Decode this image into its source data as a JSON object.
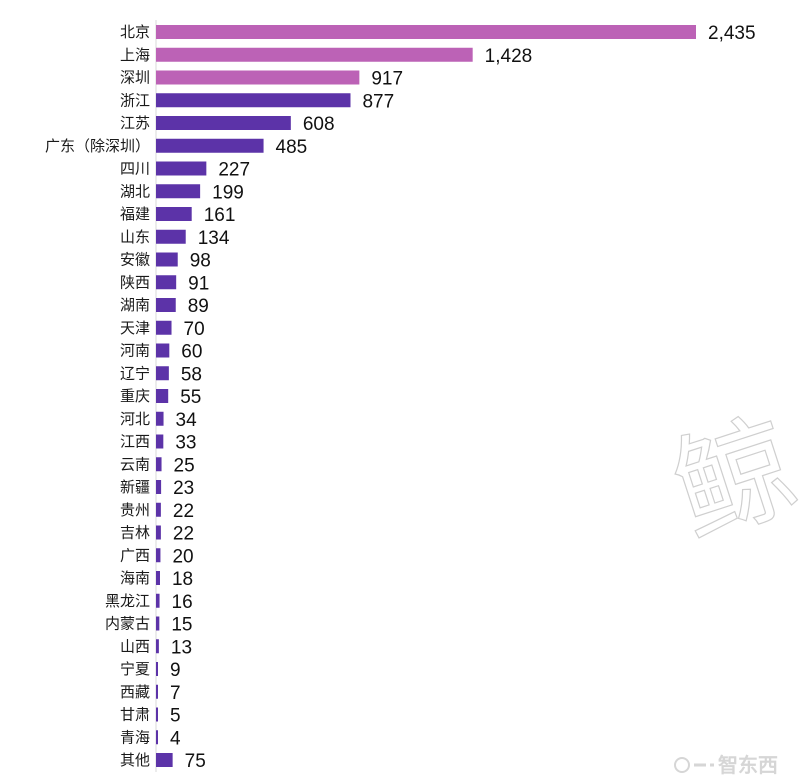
{
  "colors": {
    "highlight": "#BC62B6",
    "standard": "#5C33A8"
  },
  "watermarks": {
    "side_glyph": "鲸",
    "bottom_logo": "智东西"
  },
  "chart_data": {
    "type": "bar",
    "orientation": "horizontal",
    "title": "",
    "xlabel": "",
    "ylabel": "",
    "categories": [
      "北京",
      "上海",
      "深圳",
      "浙江",
      "江苏",
      "广东（除深圳）",
      "四川",
      "湖北",
      "福建",
      "山东",
      "安徽",
      "陕西",
      "湖南",
      "天津",
      "河南",
      "辽宁",
      "重庆",
      "河北",
      "江西",
      "云南",
      "新疆",
      "贵州",
      "吉林",
      "广西",
      "海南",
      "黑龙江",
      "内蒙古",
      "山西",
      "宁夏",
      "西藏",
      "甘肃",
      "青海",
      "其他"
    ],
    "values": [
      2435,
      1428,
      917,
      877,
      608,
      485,
      227,
      199,
      161,
      134,
      98,
      91,
      89,
      70,
      60,
      58,
      55,
      34,
      33,
      25,
      23,
      22,
      22,
      20,
      18,
      16,
      15,
      13,
      9,
      7,
      5,
      4,
      75
    ],
    "value_labels": [
      "2,435",
      "1,428",
      "917",
      "877",
      "608",
      "485",
      "227",
      "199",
      "161",
      "134",
      "98",
      "91",
      "89",
      "70",
      "60",
      "58",
      "55",
      "34",
      "33",
      "25",
      "23",
      "22",
      "22",
      "20",
      "18",
      "16",
      "15",
      "13",
      "9",
      "7",
      "5",
      "4",
      "75"
    ],
    "highlighted": [
      "北京",
      "上海",
      "深圳"
    ],
    "xlim": [
      0,
      2435
    ],
    "grid": false,
    "legend": "none"
  }
}
